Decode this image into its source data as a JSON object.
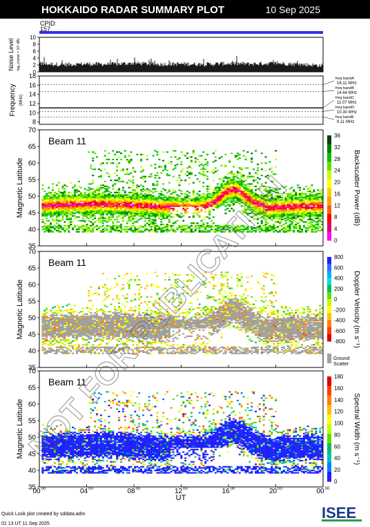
{
  "header": {
    "title": "HOKKAIDO RADAR SUMMARY PLOT",
    "date": "10 Sep 2025",
    "cpid_label": "CPID:",
    "cpid_value": "157"
  },
  "footer": {
    "credit": "Quick Look plot created by sddata.adm",
    "created": "01 13 UT 11 Sep 2025",
    "logo": "ISEE"
  },
  "watermark": "NOT FOR PUBLICATION",
  "colors": {
    "cpid_bar": "#3030f0",
    "ground_scatter": "#a0a0a0",
    "backscatter_scale": [
      "#ff00ff",
      "#e00070",
      "#ff0000",
      "#ff6000",
      "#ffa000",
      "#ffd000",
      "#ffff00",
      "#c0ff00",
      "#60e000",
      "#00c000",
      "#008000",
      "#004000"
    ],
    "velocity_scale": [
      "#2020ff",
      "#3070ff",
      "#00b0ff",
      "#00e0e0",
      "#00c060",
      "#60e000",
      "#c0ff00",
      "#ffff00",
      "#ffc000",
      "#ff8000",
      "#ff4000",
      "#e00000"
    ],
    "width_scale": [
      "#2020ff",
      "#0080ff",
      "#00c0c0",
      "#00c060",
      "#60e000",
      "#c0ff00",
      "#ffff00",
      "#ffc000",
      "#ff8000",
      "#ff4000",
      "#e00000"
    ]
  },
  "chart_data": [
    {
      "type": "bar",
      "panel": "noise",
      "ylabel": "Noise Level",
      "ylabel_sub": "log₁₀(noise × 10⁵ dB)",
      "ylim": [
        0,
        10
      ],
      "yticks": [
        "0",
        "2",
        "4",
        "6",
        "8",
        "10"
      ],
      "x": [
        "00:00",
        "02:00",
        "04:00",
        "06:00",
        "08:00",
        "10:00",
        "12:00",
        "14:00",
        "16:00",
        "18:00",
        "20:00",
        "22:00",
        "24:00"
      ],
      "values": [
        2.4,
        2.1,
        2.3,
        2.2,
        2.5,
        2.2,
        2.3,
        2.2,
        2.4,
        2.3,
        2.5,
        2.2,
        1.8
      ]
    },
    {
      "type": "line",
      "panel": "frequency",
      "ylabel": "Frequency",
      "ylabel_sub": "(MHz)",
      "ylim": [
        7.5,
        18
      ],
      "yticks": [
        "8",
        "10",
        "12",
        "14",
        "16",
        "18"
      ],
      "bands": [
        {
          "name": "freq bandA",
          "value": 16.11,
          "label": "16.11 MHz"
        },
        {
          "name": "freq bandB",
          "value": 14.64,
          "label": "14.64 MHz"
        },
        {
          "name": "freq bandC",
          "value": 11.07,
          "label": "11.07 MHz"
        },
        {
          "name": "freq bandD",
          "value": 10.3,
          "label": "10.30 MHz"
        },
        {
          "name": "freq bandE",
          "value": 9.11,
          "label": "9.11 MHz"
        }
      ],
      "active_band": 11.07
    },
    {
      "type": "heatmap",
      "panel": "backscatter",
      "beam": "Beam 11",
      "ylabel": "Magnetic Latitude",
      "ylim": [
        35,
        70
      ],
      "yticks": [
        "35",
        "40",
        "45",
        "50",
        "55",
        "60",
        "65",
        "70"
      ],
      "colorbar_label": "Backscatter Power (dB)",
      "colorbar_ticks": [
        "0",
        "4",
        "8",
        "12",
        "16",
        "20",
        "24",
        "28",
        "32",
        "36"
      ],
      "colorbar_range": [
        0,
        36
      ]
    },
    {
      "type": "heatmap",
      "panel": "velocity",
      "beam": "Beam 11",
      "ylabel": "Magnetic Latitude",
      "ylim": [
        35,
        70
      ],
      "yticks": [
        "35",
        "40",
        "45",
        "50",
        "55",
        "60",
        "65",
        "70"
      ],
      "colorbar_label": "Doppler Velocity (m s⁻¹)",
      "colorbar_ticks": [
        "800",
        "600",
        "400",
        "200",
        "0",
        "-200",
        "-400",
        "-600",
        "-800"
      ],
      "colorbar_range": [
        800,
        -800
      ],
      "ground_scatter_label": [
        "Ground",
        "Scatter"
      ]
    },
    {
      "type": "heatmap",
      "panel": "width",
      "beam": "Beam 11",
      "ylabel": "Magnetic Latitude",
      "ylim": [
        35,
        70
      ],
      "yticks": [
        "35",
        "40",
        "45",
        "50",
        "55",
        "60",
        "65",
        "70"
      ],
      "colorbar_label": "Spectral Width (m s⁻¹)",
      "colorbar_ticks": [
        "0",
        "20",
        "40",
        "60",
        "80",
        "100",
        "120",
        "140",
        "160",
        "180"
      ],
      "colorbar_range": [
        0,
        180
      ]
    }
  ],
  "x_axis": {
    "ticks": [
      "00",
      "04",
      "08",
      "12",
      "16",
      "20",
      "00"
    ],
    "tick_sup": "00",
    "tick_hours": [
      0,
      4,
      8,
      12,
      16,
      20,
      24
    ],
    "label": "UT"
  }
}
